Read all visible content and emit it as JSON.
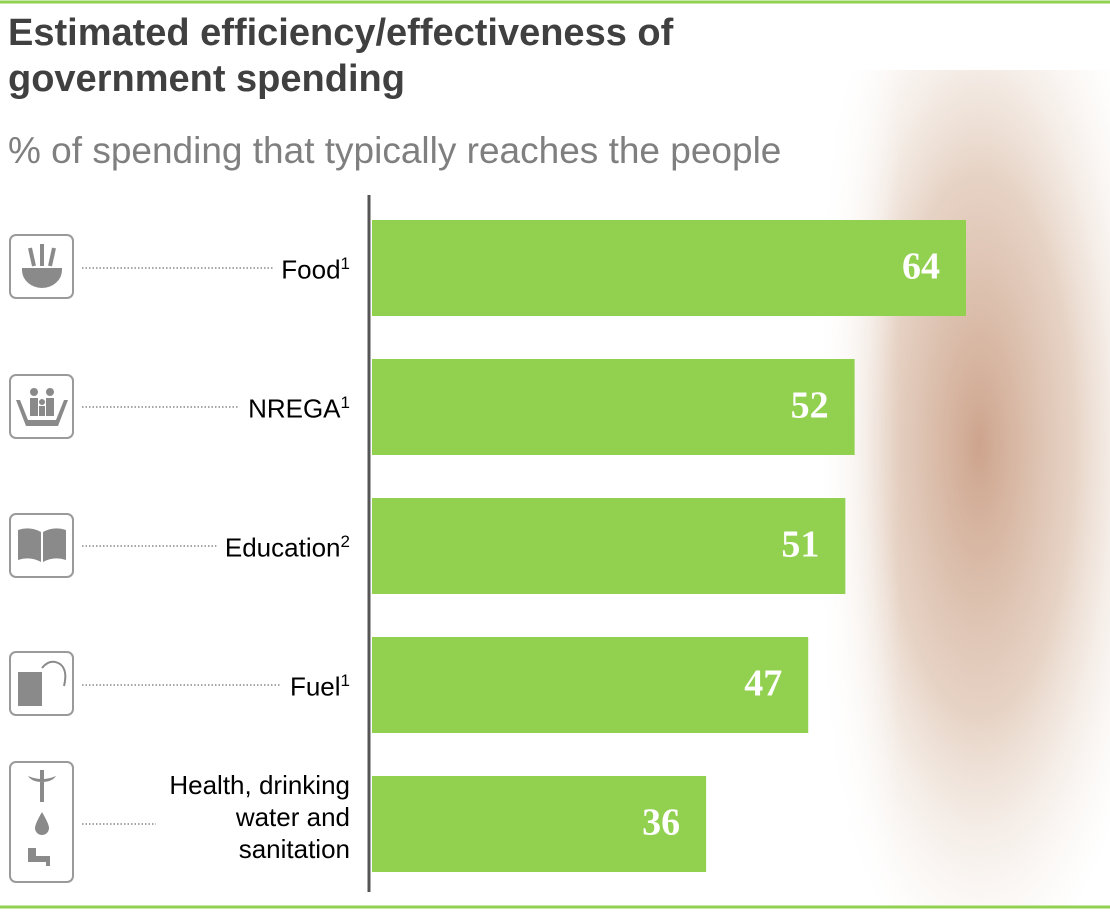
{
  "chart_data": {
    "type": "bar",
    "orientation": "horizontal",
    "title": "Estimated efficiency/effectiveness of government spending",
    "subtitle": "% of spending that typically reaches the people",
    "categories": [
      "Food",
      "NREGA",
      "Education",
      "Fuel",
      "Health, drinking water and sanitation"
    ],
    "category_notes": [
      "1",
      "1",
      "2",
      "1",
      null
    ],
    "values": [
      64,
      52,
      51,
      47,
      36
    ],
    "color": "#92d050"
  }
}
